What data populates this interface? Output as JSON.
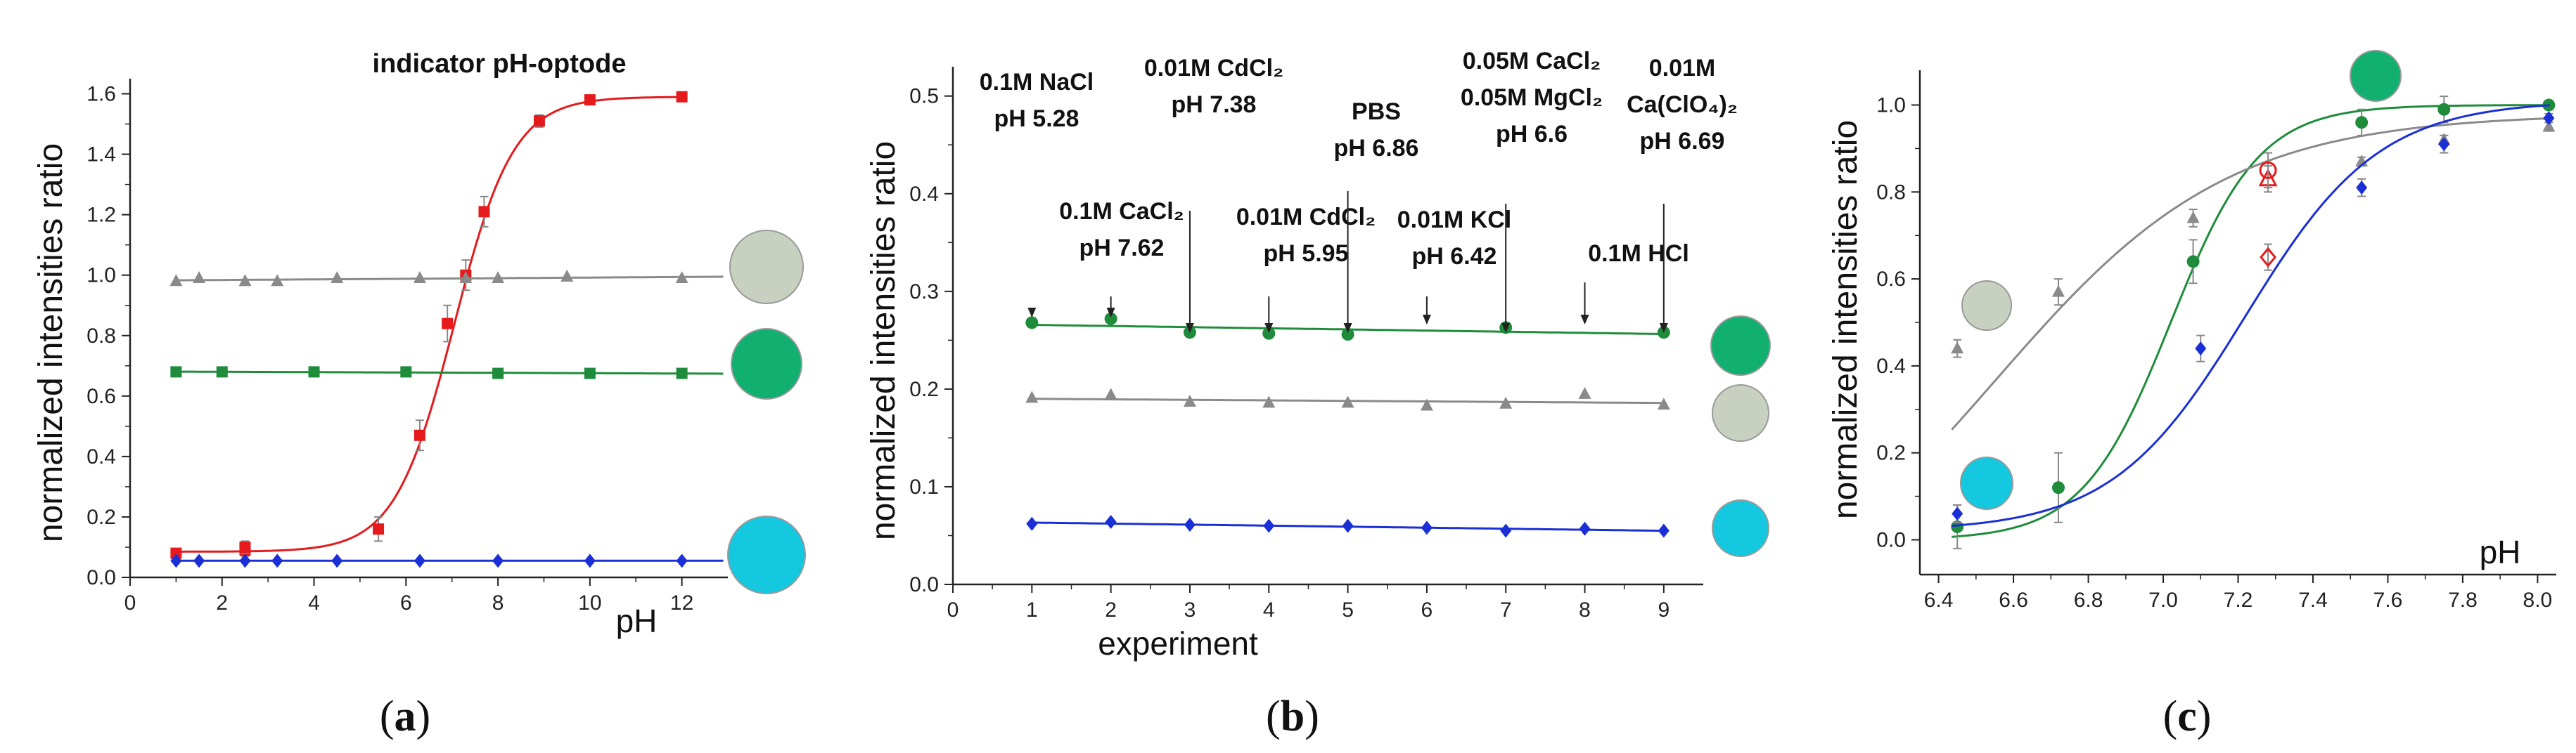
{
  "colors": {
    "red": "#e41a1c",
    "gray": "#8a8a8a",
    "green": "#1e8c3a",
    "blue": "#1a2fd6",
    "circle_gray": "#c8d0c0",
    "circle_green": "#12b070",
    "circle_cyan": "#14c8e0"
  },
  "chart_data": [
    {
      "id": "a",
      "type": "line",
      "panel_label": "(a)",
      "panel_letter": "a",
      "title": "indicator pH-optode",
      "xlabel": "pH",
      "ylabel": "normalized intensities ratio",
      "xlim": [
        0,
        13
      ],
      "ylim": [
        0,
        1.65
      ],
      "xticks": [
        0,
        2,
        4,
        6,
        8,
        10,
        12
      ],
      "yticks": [
        0.0,
        0.2,
        0.4,
        0.6,
        0.8,
        1.0,
        1.2,
        1.4,
        1.6
      ],
      "ytick_labels": [
        "0.0",
        "0.2",
        "0.4",
        "0.6",
        "0.8",
        "1.0",
        "1.2",
        "1.4",
        "1.6"
      ],
      "legend": [
        "gray circle",
        "green circle",
        "cyan circle"
      ],
      "series": [
        {
          "name": "indicator",
          "color": "red",
          "marker": "square",
          "fit": "sigmoid",
          "fit_params": {
            "bottom": 0.085,
            "top": 1.59,
            "x0": 7.05,
            "k": 1.55
          },
          "x": [
            1.0,
            2.5,
            2.5,
            5.4,
            6.3,
            6.9,
            7.3,
            7.7,
            8.9,
            10.0,
            12.0
          ],
          "y": [
            0.08,
            0.09,
            0.1,
            0.16,
            0.47,
            0.84,
            1.0,
            1.21,
            1.51,
            1.58,
            1.59
          ],
          "err": [
            0.015,
            0.02,
            0.02,
            0.04,
            0.05,
            0.06,
            0.05,
            0.05,
            0.02,
            0.015,
            0.01
          ]
        },
        {
          "name": "gray dye",
          "color": "gray",
          "marker": "triangle",
          "fit": "linear",
          "x": [
            1.0,
            1.5,
            2.5,
            3.2,
            4.5,
            6.3,
            7.3,
            8.0,
            9.5,
            12.0
          ],
          "y": [
            0.98,
            0.99,
            0.98,
            0.98,
            0.99,
            0.99,
            0.99,
            0.99,
            0.995,
            0.99
          ],
          "err": [
            0,
            0,
            0,
            0,
            0,
            0,
            0,
            0,
            0,
            0
          ]
        },
        {
          "name": "green dye",
          "color": "green",
          "marker": "square",
          "fit": "linear",
          "x": [
            1.0,
            2.0,
            4.0,
            6.0,
            8.0,
            10.0,
            12.0
          ],
          "y": [
            0.68,
            0.68,
            0.68,
            0.68,
            0.675,
            0.675,
            0.675
          ],
          "err": [
            0,
            0,
            0,
            0,
            0,
            0,
            0
          ]
        },
        {
          "name": "blue dye",
          "color": "blue",
          "marker": "diamond",
          "fit": "linear",
          "x": [
            1.0,
            1.5,
            2.5,
            3.2,
            4.5,
            6.3,
            8.0,
            10.0,
            12.0
          ],
          "y": [
            0.055,
            0.055,
            0.055,
            0.055,
            0.055,
            0.055,
            0.055,
            0.055,
            0.055
          ],
          "err": [
            0,
            0,
            0,
            0,
            0,
            0,
            0,
            0,
            0
          ]
        }
      ]
    },
    {
      "id": "b",
      "type": "line",
      "panel_label": "(b)",
      "panel_letter": "b",
      "title": "",
      "xlabel": "experiment",
      "ylabel": "normalized intensities ratio",
      "xlim": [
        0,
        9.5
      ],
      "ylim": [
        0,
        0.53
      ],
      "xticks": [
        0,
        1,
        2,
        3,
        4,
        5,
        6,
        7,
        8,
        9
      ],
      "yticks": [
        0.0,
        0.1,
        0.2,
        0.3,
        0.4,
        0.5
      ],
      "ytick_labels": [
        "0.0",
        "0.1",
        "0.2",
        "0.3",
        "0.4",
        "0.5"
      ],
      "legend": [
        "green circle",
        "gray circle",
        "cyan circle"
      ],
      "annotations": [
        {
          "x": 1,
          "lines": [
            "0.1M NaCl",
            "pH 5.28"
          ]
        },
        {
          "x": 2,
          "lines": [
            "0.1M CaCl₂",
            "pH 7.62"
          ]
        },
        {
          "x": 3,
          "lines": [
            "0.01M CdCl₂",
            "pH 7.38"
          ]
        },
        {
          "x": 4,
          "lines": [
            "0.01M CdCl₂",
            "pH 5.95"
          ]
        },
        {
          "x": 5,
          "lines": [
            "PBS",
            "pH 6.86"
          ]
        },
        {
          "x": 6,
          "lines": [
            "0.01M KCl",
            "pH 6.42"
          ]
        },
        {
          "x": 7,
          "lines": [
            "0.05M CaCl₂",
            "0.05M MgCl₂",
            "pH 6.6"
          ]
        },
        {
          "x": 8,
          "lines": [
            "0.1M HCl"
          ]
        },
        {
          "x": 9,
          "lines": [
            "0.01M",
            "Ca(ClO₄)₂",
            "pH 6.69"
          ]
        }
      ],
      "series": [
        {
          "name": "green dye",
          "color": "green",
          "marker": "circle",
          "fit": "linear",
          "x": [
            1,
            2,
            3,
            4,
            5,
            7,
            9
          ],
          "y": [
            0.268,
            0.272,
            0.258,
            0.257,
            0.256,
            0.263,
            0.258
          ],
          "err": [
            0,
            0,
            0,
            0,
            0,
            0,
            0
          ]
        },
        {
          "name": "gray dye",
          "color": "gray",
          "marker": "triangle",
          "fit": "linear",
          "x": [
            1,
            2,
            3,
            4,
            5,
            6,
            7,
            8,
            9
          ],
          "y": [
            0.191,
            0.194,
            0.187,
            0.186,
            0.186,
            0.183,
            0.185,
            0.195,
            0.184
          ],
          "err": [
            0,
            0,
            0,
            0,
            0,
            0,
            0,
            0,
            0
          ]
        },
        {
          "name": "blue dye",
          "color": "blue",
          "marker": "diamond",
          "fit": "linear",
          "x": [
            1,
            2,
            3,
            4,
            5,
            6,
            7,
            8,
            9
          ],
          "y": [
            0.062,
            0.064,
            0.061,
            0.06,
            0.06,
            0.058,
            0.055,
            0.057,
            0.055
          ],
          "err": [
            0,
            0,
            0,
            0,
            0,
            0,
            0,
            0,
            0
          ]
        }
      ]
    },
    {
      "id": "c",
      "type": "line",
      "panel_label": "(c)",
      "panel_letter": "c",
      "title": "",
      "xlabel": "pH",
      "ylabel": "normalized intensities ratio",
      "xlim": [
        6.35,
        8.05
      ],
      "ylim": [
        -0.08,
        1.08
      ],
      "xticks": [
        6.4,
        6.6,
        6.8,
        7.0,
        7.2,
        7.4,
        7.6,
        7.8,
        8.0
      ],
      "yticks": [
        0.0,
        0.2,
        0.4,
        0.6,
        0.8,
        1.0
      ],
      "ytick_labels": [
        "0.0",
        "0.2",
        "0.4",
        "0.6",
        "0.8",
        "1.0"
      ],
      "legend": [
        "green circle",
        "gray circle",
        "cyan circle"
      ],
      "series": [
        {
          "name": "green dye",
          "color": "green",
          "marker": "circle",
          "fit": "sigmoid",
          "fit_params": {
            "bottom": 0.0,
            "top": 1.0,
            "x0": 7.02,
            "k": 8.5
          },
          "x": [
            6.45,
            6.72,
            7.08,
            7.53,
            7.75,
            8.03
          ],
          "y": [
            0.03,
            0.12,
            0.64,
            0.96,
            0.99,
            1.0
          ],
          "err": [
            0.05,
            0.08,
            0.05,
            0.03,
            0.03,
            0.01
          ]
        },
        {
          "name": "gray dye",
          "color": "gray",
          "marker": "triangle",
          "fit": "sigmoid",
          "fit_params": {
            "bottom": -0.25,
            "top": 0.98,
            "x0": 6.55,
            "k": 3.2
          },
          "x": [
            6.45,
            6.72,
            7.08,
            7.53,
            7.75,
            8.03
          ],
          "y": [
            0.44,
            0.57,
            0.74,
            0.87,
            0.92,
            0.95
          ],
          "err": [
            0.02,
            0.03,
            0.02,
            0.01,
            0.01,
            0.01
          ]
        },
        {
          "name": "blue dye",
          "color": "blue",
          "marker": "diamond",
          "fit": "sigmoid",
          "fit_params": {
            "bottom": 0.02,
            "top": 1.01,
            "x0": 7.22,
            "k": 5.6
          },
          "x": [
            6.45,
            7.1,
            7.53,
            7.75,
            8.03
          ],
          "y": [
            0.06,
            0.44,
            0.81,
            0.91,
            0.97
          ],
          "err": [
            0.02,
            0.03,
            0.02,
            0.02,
            0.01
          ]
        },
        {
          "name": "red open triangle",
          "color": "red",
          "marker": "open-triangle",
          "fit": "none",
          "x": [
            7.28
          ],
          "y": [
            0.83
          ],
          "err": [
            0.03
          ]
        },
        {
          "name": "red open circle",
          "color": "red",
          "marker": "open-circle",
          "fit": "none",
          "x": [
            7.28
          ],
          "y": [
            0.85
          ],
          "err": [
            0.04
          ]
        },
        {
          "name": "red open diamond",
          "color": "red",
          "marker": "open-diamond",
          "fit": "none",
          "x": [
            7.28
          ],
          "y": [
            0.65
          ],
          "err": [
            0.03
          ]
        }
      ]
    }
  ]
}
